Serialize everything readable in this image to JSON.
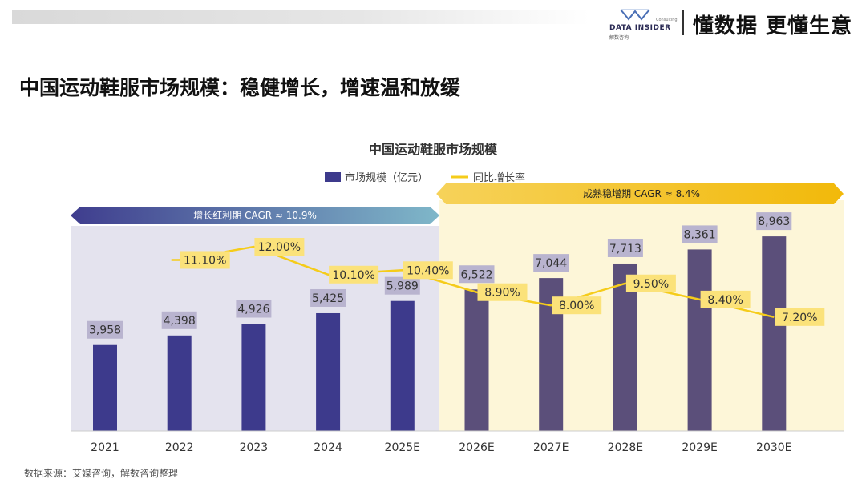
{
  "header": {
    "brand_name": "DATA INSIDER",
    "brand_sub": "解数咨询",
    "brand_consulting": "Consulting",
    "slogan": "懂数据 更懂生意"
  },
  "page_title": "中国运动鞋服市场规模：稳健增长，增速温和放缓",
  "source": "数据来源：艾媒咨询，解数咨询整理",
  "colors": {
    "bar": "#5b4f7a",
    "bar_early": "#3d3a8c",
    "line": "#f5cc1a",
    "label_bg_bar": "#b9b4cf",
    "label_bg_line": "#fbe27a",
    "phase1_bg": "#e4e3ee",
    "phase2_bg": "#fdf6d8"
  },
  "chart_data": {
    "type": "bar",
    "title": "中国运动鞋服市场规模",
    "categories": [
      "2021",
      "2022",
      "2023",
      "2024",
      "2025E",
      "2026E",
      "2027E",
      "2028E",
      "2029E",
      "2030E"
    ],
    "series": [
      {
        "name": "市场规模（亿元）",
        "type": "bar",
        "values": [
          3958,
          4398,
          4926,
          5425,
          5989,
          6522,
          7044,
          7713,
          8361,
          8963
        ],
        "labels": [
          "3,958",
          "4,398",
          "4,926",
          "5,425",
          "5,989",
          "6,522",
          "7,044",
          "7,713",
          "8,361",
          "8,963"
        ]
      },
      {
        "name": "同比增长率",
        "type": "line",
        "values": [
          null,
          11.1,
          12.0,
          10.1,
          10.4,
          8.9,
          8.0,
          9.5,
          8.4,
          7.2
        ],
        "labels": [
          "",
          "11.10%",
          "12.00%",
          "10.10%",
          "10.40%",
          "8.90%",
          "8.00%",
          "9.50%",
          "8.40%",
          "7.20%"
        ]
      }
    ],
    "phases": [
      {
        "label": "增长红利期 CAGR ≈ 10.9%",
        "from": "2021",
        "to": "2025E"
      },
      {
        "label": "成熟稳增期 CAGR ≈ 8.4%",
        "from": "2026E",
        "to": "2030E"
      }
    ],
    "legend_position": "top-center"
  }
}
